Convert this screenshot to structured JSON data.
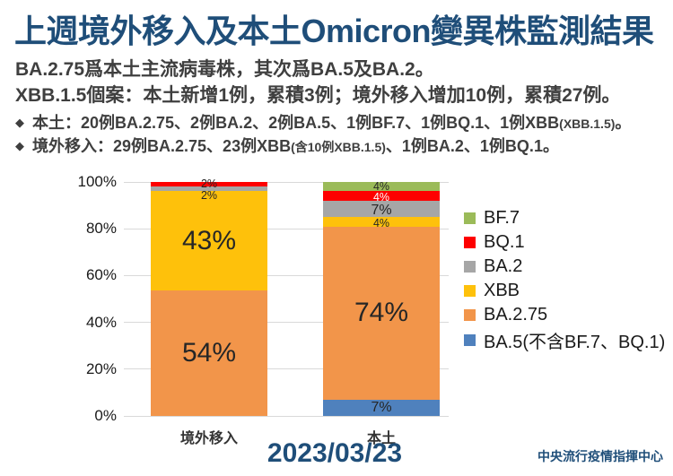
{
  "title": "上週境外移入及本土Omicron變異株監測結果",
  "intro": {
    "line1": "BA.2.75爲本土主流病毒株，其次爲BA.5及BA.2。",
    "line2": "XBB.1.5個案：本土新增1例，累積3例；境外移入增加10例，累積27例。"
  },
  "bullets": [
    {
      "marker": "◆",
      "pre": "本土：20例BA.2.75、2例BA.2、2例BA.5、1例BF.7、1例BQ.1、1例XBB",
      "small": "(XBB.1.5)",
      "post": "。"
    },
    {
      "marker": "◆",
      "pre": "境外移入：29例BA.2.75、23例XBB",
      "small": "(含10例XBB.1.5)",
      "post": "、1例BA.2、1例BQ.1。"
    }
  ],
  "date_label": "2023/03/23",
  "footer_org": "中央流行疫情指揮中心",
  "colors": {
    "title_blue": "#1F4E79",
    "body_gray": "#3F3F3F",
    "gridline": "#D9D9D9"
  },
  "chart_data": {
    "type": "bar",
    "variant": "stacked-100-percent",
    "categories": [
      "境外移入",
      "本土"
    ],
    "series": [
      {
        "name": "BA.5(不含BF.7、BQ.1)",
        "color": "#4F81BD",
        "values": [
          0,
          7
        ],
        "label_colors": [
          "#262626",
          "#262626"
        ]
      },
      {
        "name": "BA.2.75",
        "color": "#F2954A",
        "values": [
          54,
          74
        ],
        "label_colors": [
          "#262626",
          "#262626"
        ]
      },
      {
        "name": "XBB",
        "color": "#FEC10B",
        "values": [
          43,
          4
        ],
        "label_colors": [
          "#262626",
          "#262626"
        ]
      },
      {
        "name": "BA.2",
        "color": "#A6A6A6",
        "values": [
          2,
          7
        ],
        "label_colors": [
          "#262626",
          "#262626"
        ]
      },
      {
        "name": "BQ.1",
        "color": "#FE0000",
        "values": [
          2,
          4
        ],
        "label_colors": [
          "#262626",
          "#FFFFFF"
        ]
      },
      {
        "name": "BF.7",
        "color": "#9BBB59",
        "values": [
          0,
          4
        ],
        "label_colors": [
          "#262626",
          "#262626"
        ]
      }
    ],
    "legend": [
      "BF.7",
      "BQ.1",
      "BA.2",
      "XBB",
      "BA.2.75",
      "BA.5(不含BF.7、BQ.1)"
    ],
    "y_ticks": [
      "100%",
      "80%",
      "60%",
      "40%",
      "20%",
      "0%"
    ],
    "ylim": [
      0,
      100
    ],
    "grid": true,
    "legend_position": "right",
    "value_suffix": "%"
  }
}
